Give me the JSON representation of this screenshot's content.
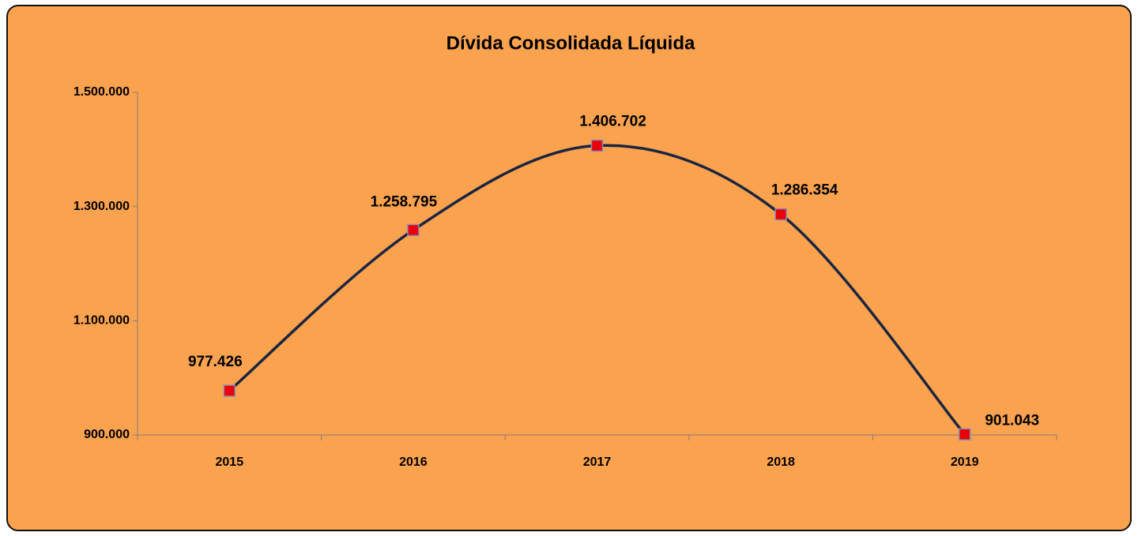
{
  "chart_data": {
    "type": "line",
    "title": "Dívida Consolidada  Líquida",
    "categories": [
      "2015",
      "2016",
      "2017",
      "2018",
      "2019"
    ],
    "series": [
      {
        "name": "Dívida Consolidada Líquida",
        "color": "#1b2540",
        "marker_color": "#e8000b",
        "values": [
          977426,
          1258795,
          1406702,
          1286354,
          901043
        ],
        "value_labels": [
          "977.426",
          "1.258.795",
          "1.406.702",
          "1.286.354",
          "901.043"
        ]
      }
    ],
    "ylim": [
      900000,
      1500000
    ],
    "yticks": [
      {
        "value": 900000,
        "label": "900.000"
      },
      {
        "value": 1100000,
        "label": "1.100.000"
      },
      {
        "value": 1300000,
        "label": "1.300.000"
      },
      {
        "value": 1500000,
        "label": "1.500.000"
      }
    ],
    "smooth": true,
    "grid": false
  }
}
